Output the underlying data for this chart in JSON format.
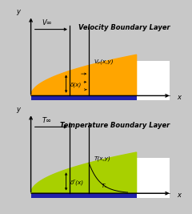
{
  "bg_color": "#c8c8c8",
  "orange_fill": "#FFA500",
  "green_fill": "#A8D000",
  "plate_color": "#2222AA",
  "white_box": "#FFFFFF",
  "top_title": "Velocity Boundary Layer",
  "bot_title": "Temperature Boundary Layer",
  "v_inf_label": "V∞",
  "T_inf_label": "T∞",
  "vxy_label": "Vₚ(x,y)",
  "Txy_label": "T(x,y)",
  "Ts_label": "Tₛ",
  "delta_label": "δ(x)",
  "delta_T_label": "δᵀ(x)",
  "title_fontsize": 6.0,
  "label_fontsize": 6.0,
  "small_fontsize": 5.2,
  "annot_fontsize": 5.5
}
